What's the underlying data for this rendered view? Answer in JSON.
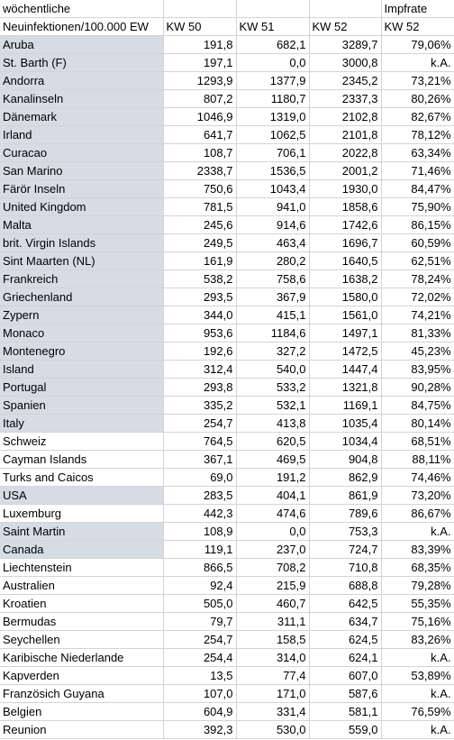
{
  "header": {
    "row1": [
      "wöchentliche",
      "",
      "",
      "",
      "Impfrate"
    ],
    "row2": [
      "Neuinfektionen/100.000 EW",
      "KW 50",
      "KW 51",
      "KW 52",
      "KW 52"
    ]
  },
  "rows": [
    {
      "country": "Aruba",
      "kw50": "191,8",
      "kw51": "682,1",
      "kw52": "3289,7",
      "rate": "79,06%",
      "highlight": true
    },
    {
      "country": "St. Barth (F)",
      "kw50": "197,1",
      "kw51": "0,0",
      "kw52": "3000,8",
      "rate": "k.A.",
      "highlight": true
    },
    {
      "country": "Andorra",
      "kw50": "1293,9",
      "kw51": "1377,9",
      "kw52": "2345,2",
      "rate": "73,21%",
      "highlight": true
    },
    {
      "country": "Kanalinseln",
      "kw50": "807,2",
      "kw51": "1180,7",
      "kw52": "2337,3",
      "rate": "80,26%",
      "highlight": true
    },
    {
      "country": "Dänemark",
      "kw50": "1046,9",
      "kw51": "1319,0",
      "kw52": "2102,8",
      "rate": "82,67%",
      "highlight": true
    },
    {
      "country": "Irland",
      "kw50": "641,7",
      "kw51": "1062,5",
      "kw52": "2101,8",
      "rate": "78,12%",
      "highlight": true
    },
    {
      "country": "Curacao",
      "kw50": "108,7",
      "kw51": "706,1",
      "kw52": "2022,8",
      "rate": "63,34%",
      "highlight": true
    },
    {
      "country": "San Marino",
      "kw50": "2338,7",
      "kw51": "1536,5",
      "kw52": "2001,2",
      "rate": "71,46%",
      "highlight": true
    },
    {
      "country": "Färör Inseln",
      "kw50": "750,6",
      "kw51": "1043,4",
      "kw52": "1930,0",
      "rate": "84,47%",
      "highlight": true
    },
    {
      "country": "United Kingdom",
      "kw50": "781,5",
      "kw51": "941,0",
      "kw52": "1858,6",
      "rate": "75,90%",
      "highlight": true
    },
    {
      "country": "Malta",
      "kw50": "245,6",
      "kw51": "914,6",
      "kw52": "1742,6",
      "rate": "86,15%",
      "highlight": true
    },
    {
      "country": "brit. Virgin Islands",
      "kw50": "249,5",
      "kw51": "463,4",
      "kw52": "1696,7",
      "rate": "60,59%",
      "highlight": true
    },
    {
      "country": "Sint Maarten (NL)",
      "kw50": "161,9",
      "kw51": "280,2",
      "kw52": "1640,5",
      "rate": "62,51%",
      "highlight": true
    },
    {
      "country": "Frankreich",
      "kw50": "538,2",
      "kw51": "758,6",
      "kw52": "1638,2",
      "rate": "78,24%",
      "highlight": true
    },
    {
      "country": "Griechenland",
      "kw50": "293,5",
      "kw51": "367,9",
      "kw52": "1580,0",
      "rate": "72,02%",
      "highlight": true
    },
    {
      "country": "Zypern",
      "kw50": "344,0",
      "kw51": "415,1",
      "kw52": "1561,0",
      "rate": "74,21%",
      "highlight": true
    },
    {
      "country": "Monaco",
      "kw50": "953,6",
      "kw51": "1184,6",
      "kw52": "1497,1",
      "rate": "81,33%",
      "highlight": true
    },
    {
      "country": "Montenegro",
      "kw50": "192,6",
      "kw51": "327,2",
      "kw52": "1472,5",
      "rate": "45,23%",
      "highlight": true
    },
    {
      "country": "Island",
      "kw50": "312,4",
      "kw51": "540,0",
      "kw52": "1447,4",
      "rate": "83,95%",
      "highlight": true
    },
    {
      "country": "Portugal",
      "kw50": "293,8",
      "kw51": "533,2",
      "kw52": "1321,8",
      "rate": "90,28%",
      "highlight": true
    },
    {
      "country": "Spanien",
      "kw50": "335,2",
      "kw51": "532,1",
      "kw52": "1169,1",
      "rate": "84,75%",
      "highlight": true
    },
    {
      "country": "Italy",
      "kw50": "254,7",
      "kw51": "413,8",
      "kw52": "1035,4",
      "rate": "80,14%",
      "highlight": true
    },
    {
      "country": "Schweiz",
      "kw50": "764,5",
      "kw51": "620,5",
      "kw52": "1034,4",
      "rate": "68,51%",
      "highlight": false
    },
    {
      "country": "Cayman Islands",
      "kw50": "367,1",
      "kw51": "469,5",
      "kw52": "904,8",
      "rate": "88,11%",
      "highlight": false
    },
    {
      "country": "Turks and Caicos",
      "kw50": "69,0",
      "kw51": "191,2",
      "kw52": "862,9",
      "rate": "74,46%",
      "highlight": false
    },
    {
      "country": "USA",
      "kw50": "283,5",
      "kw51": "404,1",
      "kw52": "861,9",
      "rate": "73,20%",
      "highlight": true
    },
    {
      "country": "Luxemburg",
      "kw50": "442,3",
      "kw51": "474,6",
      "kw52": "789,6",
      "rate": "86,67%",
      "highlight": false
    },
    {
      "country": "Saint Martin",
      "kw50": "108,9",
      "kw51": "0,0",
      "kw52": "753,3",
      "rate": "k.A.",
      "highlight": true
    },
    {
      "country": "Canada",
      "kw50": "119,1",
      "kw51": "237,0",
      "kw52": "724,7",
      "rate": "83,39%",
      "highlight": true
    },
    {
      "country": "Liechtenstein",
      "kw50": "866,5",
      "kw51": "708,2",
      "kw52": "710,8",
      "rate": "68,35%",
      "highlight": false
    },
    {
      "country": "Australien",
      "kw50": "92,4",
      "kw51": "215,9",
      "kw52": "688,8",
      "rate": "79,28%",
      "highlight": false
    },
    {
      "country": "Kroatien",
      "kw50": "505,0",
      "kw51": "460,7",
      "kw52": "642,5",
      "rate": "55,35%",
      "highlight": false
    },
    {
      "country": "Bermudas",
      "kw50": "79,7",
      "kw51": "311,1",
      "kw52": "634,7",
      "rate": "75,16%",
      "highlight": false
    },
    {
      "country": "Seychellen",
      "kw50": "254,7",
      "kw51": "158,5",
      "kw52": "624,5",
      "rate": "83,26%",
      "highlight": false
    },
    {
      "country": "Karibische Niederlande",
      "kw50": "254,4",
      "kw51": "314,0",
      "kw52": "624,1",
      "rate": "k.A.",
      "highlight": false
    },
    {
      "country": "Kapverden",
      "kw50": "13,5",
      "kw51": "77,4",
      "kw52": "607,0",
      "rate": "53,89%",
      "highlight": false
    },
    {
      "country": "Französich Guyana",
      "kw50": "107,0",
      "kw51": "171,0",
      "kw52": "587,6",
      "rate": "k.A.",
      "highlight": false
    },
    {
      "country": "Belgien",
      "kw50": "604,9",
      "kw51": "331,4",
      "kw52": "581,1",
      "rate": "76,59%",
      "highlight": false
    },
    {
      "country": "Reunion",
      "kw50": "392,3",
      "kw51": "530,0",
      "kw52": "559,0",
      "rate": "k.A.",
      "highlight": false
    }
  ],
  "colors": {
    "highlight": "#d5dce4",
    "grid": "#d4d4d4"
  }
}
